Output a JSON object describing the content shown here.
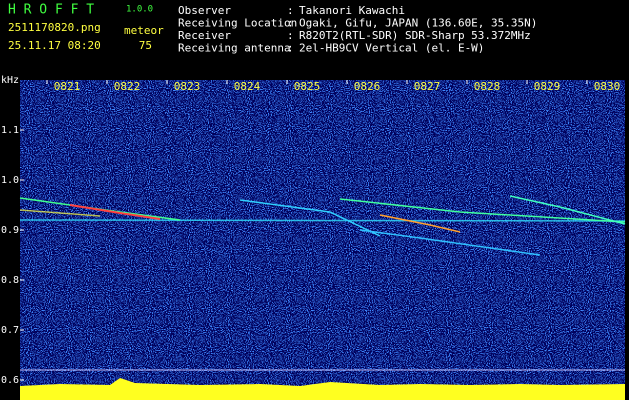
{
  "header": {
    "title": "H R O F F T",
    "version": "1.0.0",
    "filename": "2511170820.png",
    "datetime": "25.11.17 08:20",
    "meteor_label": "meteor",
    "meteor_count": "75",
    "separator": ":",
    "info": [
      [
        "Observer",
        "Takanori Kawachi"
      ],
      [
        "Receiving Location",
        "Ogaki, Gifu, JAPAN (136.60E, 35.35N)"
      ],
      [
        "Receiver",
        "R820T2(RTL-SDR) SDR-Sharp 53.372MHz"
      ],
      [
        "Receiving antenna",
        "2el-HB9CV Vertical (el. E-W)"
      ]
    ]
  },
  "chart_data": {
    "type": "spectrogram",
    "y_unit": "kHz",
    "categories": [
      "0821",
      "0822",
      "0823",
      "0824",
      "0825",
      "0826",
      "0827",
      "0828",
      "0829",
      "0830"
    ],
    "ylim": [
      0.56,
      1.2
    ],
    "yticks": [
      1.1,
      {
        "value": 1,
        "label": "1.0"
      },
      0.9,
      0.8,
      0.7,
      0.6
    ]
  }
}
